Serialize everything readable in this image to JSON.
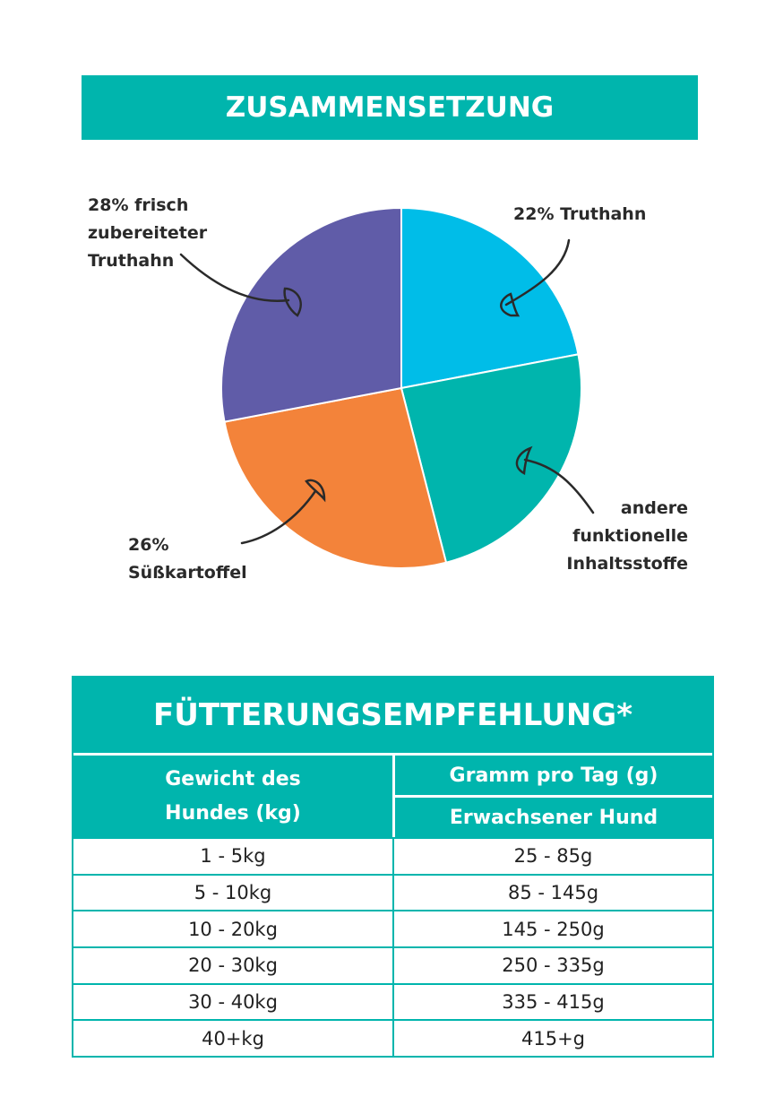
{
  "composition": {
    "title": "ZUSAMMENSETZUNG"
  },
  "chart_data": {
    "type": "pie",
    "title": "ZUSAMMENSETZUNG",
    "slices": [
      {
        "label": "22% Truthahn",
        "value": 22,
        "color": "#00bde8"
      },
      {
        "label": "andere funktionelle Inhaltsstoffe",
        "value": 24,
        "color": "#00b5ad"
      },
      {
        "label": "26% Süßkartoffel",
        "value": 26,
        "color": "#f3833a"
      },
      {
        "label": "28% frisch zubereiteter Truthahn",
        "value": 28,
        "color": "#605ca8"
      }
    ],
    "start": "top",
    "direction": "clockwise"
  },
  "labels": {
    "fresh_turkey": [
      "28% frisch",
      "zubereiteter",
      "Truthahn"
    ],
    "turkey": [
      "22% Truthahn"
    ],
    "other": [
      "andere",
      "funktionelle",
      "Inhaltsstoffe"
    ],
    "sweet_potato": [
      "26%",
      "Süßkartoffel"
    ]
  },
  "feeding": {
    "title": "FÜTTERUNGSEMPFEHLUNG*",
    "col1_header": [
      "Gewicht des",
      "Hundes (kg)"
    ],
    "col2_header": "Gramm pro Tag (g)",
    "col2_subheader": "Erwachsener Hund",
    "rows": [
      {
        "weight": "1 - 5kg",
        "grams": "25 - 85g"
      },
      {
        "weight": "5 - 10kg",
        "grams": "85 - 145g"
      },
      {
        "weight": "10 - 20kg",
        "grams": "145 - 250g"
      },
      {
        "weight": "20 - 30kg",
        "grams": "250 - 335g"
      },
      {
        "weight": "30 - 40kg",
        "grams": "335 - 415g"
      },
      {
        "weight": "40+kg",
        "grams": "415+g"
      }
    ]
  }
}
